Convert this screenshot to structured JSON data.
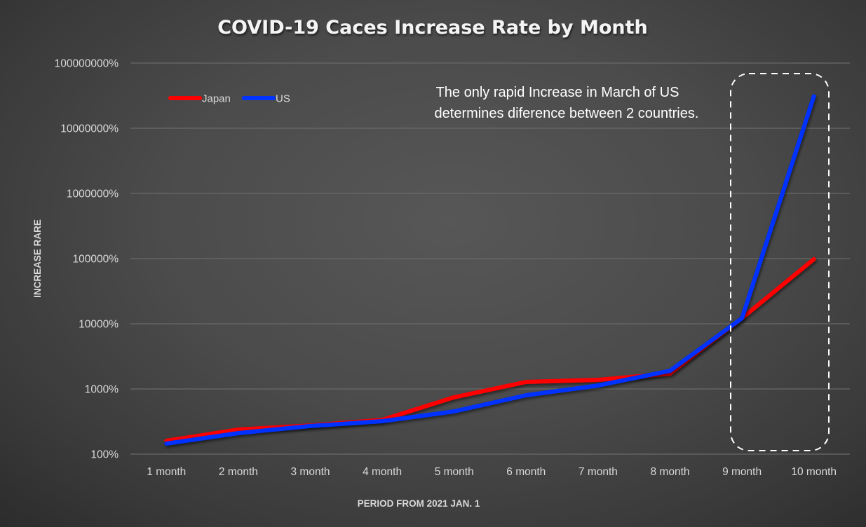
{
  "chart_data": {
    "type": "line",
    "title": "COVID-19 Caces Increase Rate by Month",
    "xlabel": "PERIOD FROM 2021 JAN. 1",
    "ylabel": "INCREASE RARE",
    "yscale": "log",
    "ylim_percent": [
      100,
      100000000
    ],
    "y_ticks": [
      "100%",
      "1000%",
      "10000%",
      "100000%",
      "1000000%",
      "10000000%",
      "100000000%"
    ],
    "y_tick_values": [
      100,
      1000,
      10000,
      100000,
      1000000,
      10000000,
      100000000
    ],
    "categories": [
      "1 month",
      "2 month",
      "3 month",
      "4 month",
      "5 month",
      "6 month",
      "7 month",
      "8 month",
      "9 month",
      "10 month"
    ],
    "series": [
      {
        "name": "Japan",
        "color": "#ff0000",
        "values": [
          160,
          238,
          275,
          336,
          745,
          1280,
          1380,
          1720,
          12200,
          98000
        ]
      },
      {
        "name": "US",
        "color": "#0033ff",
        "values": [
          145,
          210,
          270,
          320,
          453,
          800,
          1130,
          1900,
          12200,
          31000000
        ]
      }
    ],
    "grid": "horizontal",
    "legend_position": "top-left",
    "annotation": {
      "lines": [
        "The only rapid Increase in March of US",
        "determines diference between 2 countries."
      ],
      "highlight": "dashed rounded box around 9 month to 10 month"
    }
  }
}
